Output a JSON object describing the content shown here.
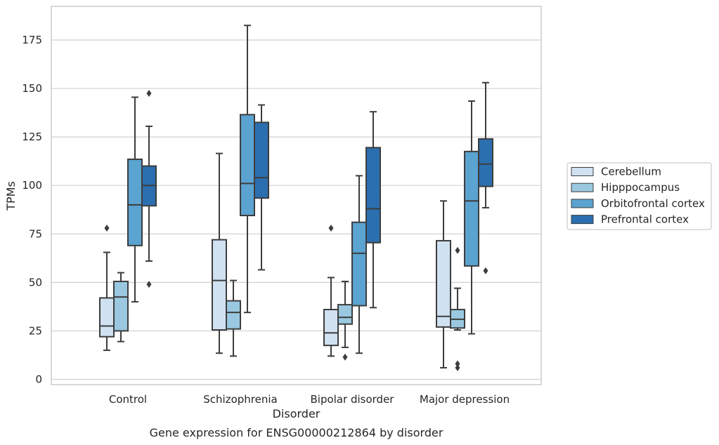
{
  "chart_data": {
    "type": "box",
    "title": "",
    "caption": "Gene expression for ENSG00000212864 by disorder",
    "xlabel": "Disorder",
    "ylabel": "TPMs",
    "ylim": [
      -2,
      192
    ],
    "yticks": [
      0,
      25,
      50,
      75,
      100,
      125,
      150,
      175
    ],
    "grid": "horizontal",
    "legend_position": "right",
    "categories": [
      "Control",
      "Schizophrenia",
      "Bipolar disorder",
      "Major depression"
    ],
    "series": [
      {
        "name": "Cerebellum",
        "color": "#d0e1f2",
        "boxes": [
          {
            "whisker_low": 15,
            "q1": 22,
            "median": 27.5,
            "q3": 42,
            "whisker_high": 65.5,
            "outliers": [
              78
            ]
          },
          {
            "whisker_low": 13.5,
            "q1": 25.5,
            "median": 51,
            "q3": 72,
            "whisker_high": 116.5,
            "outliers": []
          },
          {
            "whisker_low": 12,
            "q1": 17.5,
            "median": 24,
            "q3": 36,
            "whisker_high": 52.5,
            "outliers": [
              78
            ]
          },
          {
            "whisker_low": 6,
            "q1": 27,
            "median": 32.5,
            "q3": 71.5,
            "whisker_high": 92,
            "outliers": []
          }
        ]
      },
      {
        "name": "Hipppocampus",
        "color": "#9ac8e0",
        "boxes": [
          {
            "whisker_low": 19.5,
            "q1": 25,
            "median": 42.5,
            "q3": 50.5,
            "whisker_high": 55,
            "outliers": []
          },
          {
            "whisker_low": 12,
            "q1": 26,
            "median": 34.5,
            "q3": 40.5,
            "whisker_high": 51,
            "outliers": []
          },
          {
            "whisker_low": 16.5,
            "q1": 28.5,
            "median": 32,
            "q3": 38.5,
            "whisker_high": 50.5,
            "outliers": [
              11.5
            ]
          },
          {
            "whisker_low": 25.5,
            "q1": 26.5,
            "median": 31,
            "q3": 36,
            "whisker_high": 47,
            "outliers": [
              66.5,
              8,
              6
            ]
          }
        ]
      },
      {
        "name": "Orbitofrontal cortex",
        "color": "#5ba3d0",
        "boxes": [
          {
            "whisker_low": 40,
            "q1": 69,
            "median": 90,
            "q3": 113.5,
            "whisker_high": 145.5,
            "outliers": []
          },
          {
            "whisker_low": 34.5,
            "q1": 84.5,
            "median": 101,
            "q3": 136.5,
            "whisker_high": 182.5,
            "outliers": []
          },
          {
            "whisker_low": 13.5,
            "q1": 38,
            "median": 65,
            "q3": 81,
            "whisker_high": 105,
            "outliers": []
          },
          {
            "whisker_low": 23.5,
            "q1": 58.5,
            "median": 92,
            "q3": 117.5,
            "whisker_high": 143.5,
            "outliers": []
          }
        ]
      },
      {
        "name": "Prefrontal cortex",
        "color": "#2b6fb0",
        "boxes": [
          {
            "whisker_low": 61,
            "q1": 89.5,
            "median": 100,
            "q3": 110,
            "whisker_high": 130.5,
            "outliers": [
              147.5,
              49
            ]
          },
          {
            "whisker_low": 56.5,
            "q1": 93.5,
            "median": 104,
            "q3": 132.5,
            "whisker_high": 141.5,
            "outliers": []
          },
          {
            "whisker_low": 37,
            "q1": 70.5,
            "median": 88,
            "q3": 119.5,
            "whisker_high": 138,
            "outliers": []
          },
          {
            "whisker_low": 88.5,
            "q1": 99.5,
            "median": 111,
            "q3": 124,
            "whisker_high": 153,
            "outliers": [
              56
            ]
          }
        ]
      }
    ]
  }
}
